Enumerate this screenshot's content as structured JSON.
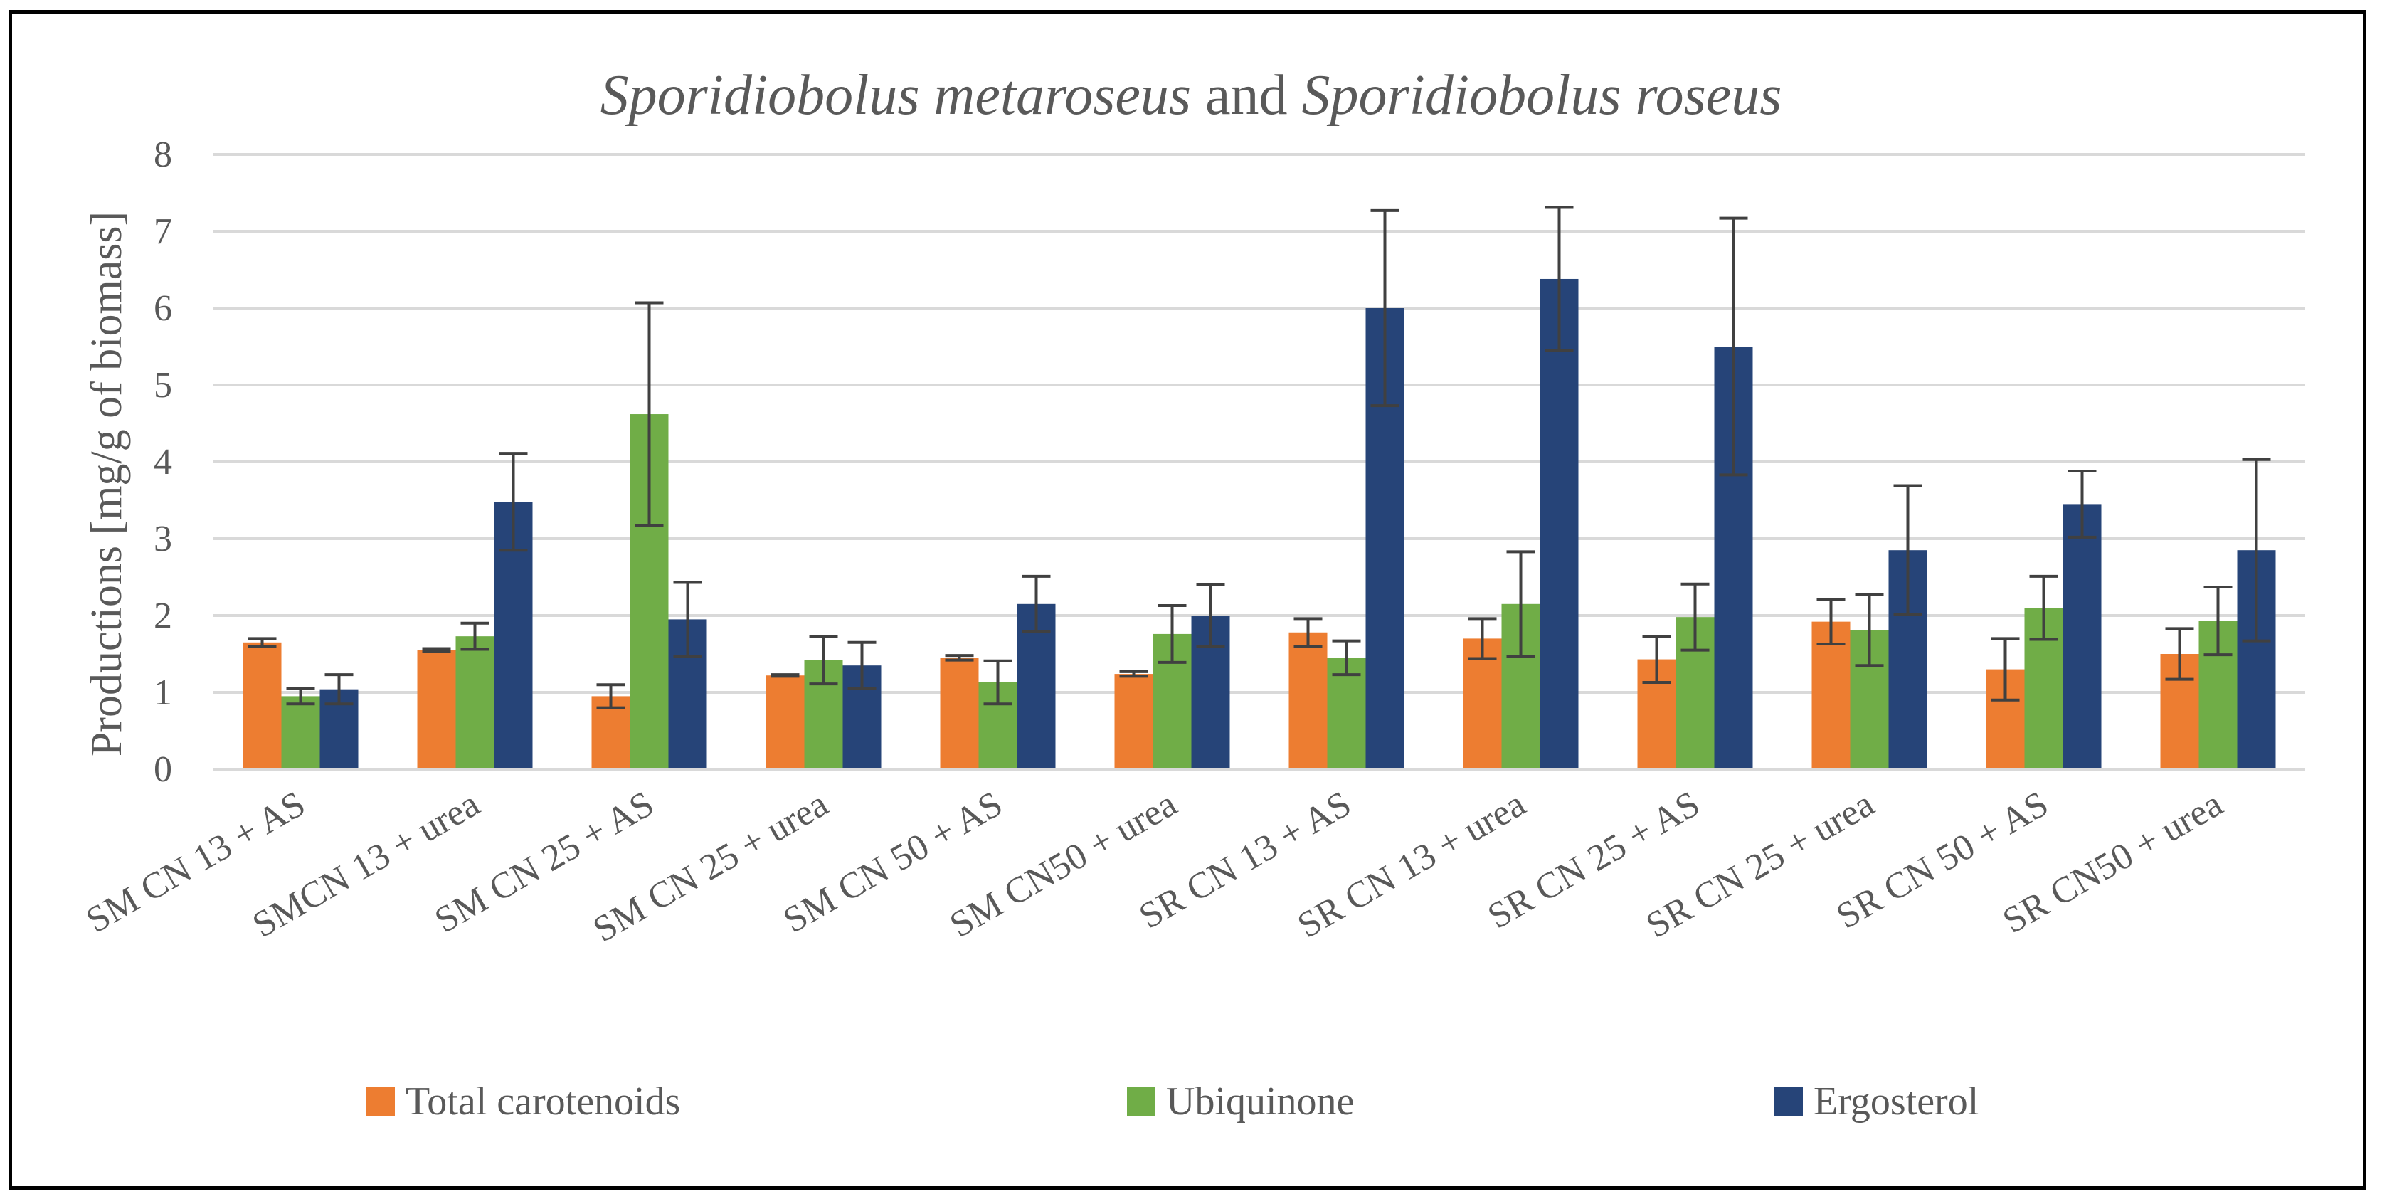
{
  "chart_data": {
    "type": "bar",
    "title_parts": [
      {
        "text": "Sporidiobolus metaroseus",
        "italic": true
      },
      {
        "text": " and ",
        "italic": false
      },
      {
        "text": "Sporidiobolus roseus",
        "italic": true
      }
    ],
    "xlabel": "",
    "ylabel": "Productions [mg/g of biomass]",
    "ylim": [
      0,
      8
    ],
    "yticks": [
      0,
      1,
      2,
      3,
      4,
      5,
      6,
      7,
      8
    ],
    "grid": true,
    "legend_position": "bottom",
    "categories": [
      "SM CN 13 + AS",
      "SMCN 13 + urea",
      "SM CN 25 + AS",
      "SM CN 25 + urea",
      "SM CN 50 + AS",
      "SM CN50 + urea",
      "SR CN 13 + AS",
      "SR CN 13 + urea",
      "SR CN 25 + AS",
      "SR CN 25 + urea",
      "SR CN 50 + AS",
      "SR CN50 + urea"
    ],
    "series": [
      {
        "name": "Total carotenoids",
        "color": "#ED7D31",
        "values": [
          1.65,
          1.55,
          0.95,
          1.22,
          1.45,
          1.24,
          1.78,
          1.7,
          1.43,
          1.92,
          1.3,
          1.5
        ],
        "errors": [
          0.05,
          0.02,
          0.15,
          0.01,
          0.03,
          0.03,
          0.18,
          0.26,
          0.3,
          0.29,
          0.4,
          0.33
        ]
      },
      {
        "name": "Ubiquinone",
        "color": "#70AD47",
        "values": [
          0.95,
          1.73,
          4.62,
          1.42,
          1.13,
          1.76,
          1.45,
          2.15,
          1.98,
          1.81,
          2.1,
          1.93
        ],
        "errors": [
          0.1,
          0.17,
          1.45,
          0.31,
          0.28,
          0.37,
          0.22,
          0.68,
          0.43,
          0.46,
          0.41,
          0.44
        ]
      },
      {
        "name": "Ergosterol",
        "color": "#264478",
        "values": [
          1.04,
          3.48,
          1.95,
          1.35,
          2.15,
          2.0,
          6.0,
          6.38,
          5.5,
          2.85,
          3.45,
          2.85
        ],
        "errors": [
          0.19,
          0.63,
          0.48,
          0.3,
          0.36,
          0.4,
          1.27,
          0.93,
          1.67,
          0.84,
          0.43,
          1.18
        ]
      }
    ]
  }
}
